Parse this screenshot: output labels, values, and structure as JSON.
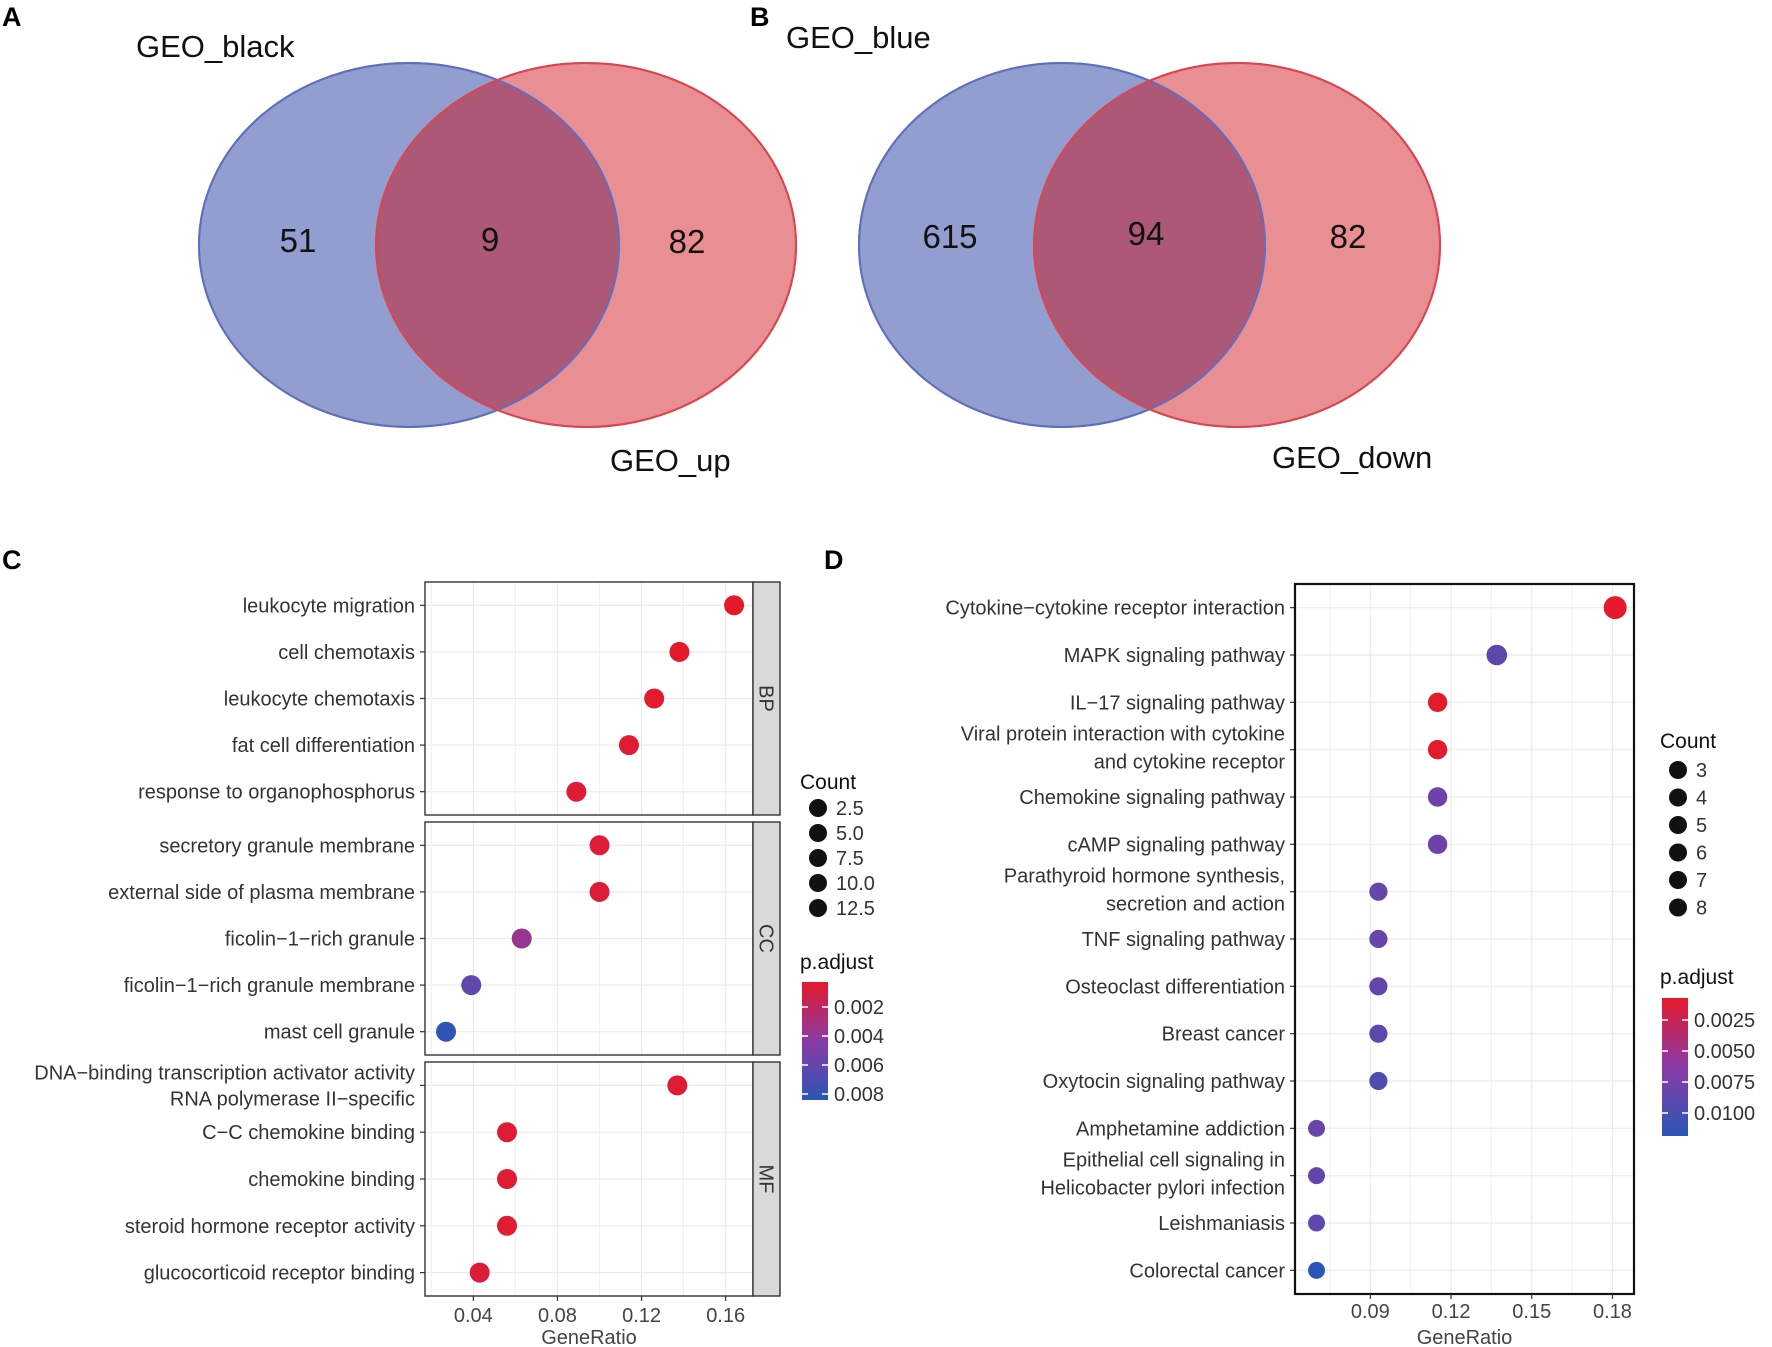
{
  "colors": {
    "venn_left": "#7f8cc8",
    "venn_left_stroke": "#5f6fbf",
    "venn_right": "#e36f74",
    "venn_right_stroke": "#d9464f",
    "venn_overlap": "#a95476",
    "p_low": "#e41a2c",
    "p_mid": "#8a3aa6",
    "p_high": "#2a57b5",
    "grid": "#ebebeb",
    "strip_fill": "#d9d9d9"
  },
  "chart_data": [
    {
      "panel": "A",
      "type": "venn",
      "sets": [
        {
          "name": "GEO_black",
          "only": 51
        },
        {
          "name": "GEO_up",
          "only": 82
        }
      ],
      "overlap": 9
    },
    {
      "panel": "B",
      "type": "venn",
      "sets": [
        {
          "name": "GEO_blue",
          "only": 615
        },
        {
          "name": "GEO_down",
          "only": 82
        }
      ],
      "overlap": 94
    },
    {
      "panel": "C",
      "type": "scatter",
      "title": "",
      "xlabel": "GeneRatio",
      "xlim": [
        0.017,
        0.173
      ],
      "xticks": [
        "0.04",
        "0.08",
        "0.12",
        "0.16"
      ],
      "facets": [
        {
          "name": "BP",
          "terms": [
            {
              "term": "leukocyte migration",
              "generatio": 0.164,
              "p_adjust": 0.0006,
              "count": 12.5
            },
            {
              "term": "cell chemotaxis",
              "generatio": 0.138,
              "p_adjust": 0.0006,
              "count": 11
            },
            {
              "term": "leukocyte chemotaxis",
              "generatio": 0.126,
              "p_adjust": 0.0007,
              "count": 10
            },
            {
              "term": "fat cell differentiation",
              "generatio": 0.114,
              "p_adjust": 0.0008,
              "count": 9
            },
            {
              "term": "response to organophosphorus",
              "generatio": 0.089,
              "p_adjust": 0.0009,
              "count": 7
            }
          ]
        },
        {
          "name": "CC",
          "terms": [
            {
              "term": "secretory granule membrane",
              "generatio": 0.1,
              "p_adjust": 0.001,
              "count": 8
            },
            {
              "term": "external side of plasma membrane",
              "generatio": 0.1,
              "p_adjust": 0.001,
              "count": 8
            },
            {
              "term": "ficolin−1−rich granule",
              "generatio": 0.063,
              "p_adjust": 0.004,
              "count": 5
            },
            {
              "term": "ficolin−1−rich granule membrane",
              "generatio": 0.039,
              "p_adjust": 0.0065,
              "count": 3
            },
            {
              "term": "mast cell granule",
              "generatio": 0.027,
              "p_adjust": 0.0085,
              "count": 2.5
            }
          ]
        },
        {
          "name": "MF",
          "terms": [
            {
              "term": "DNA−binding transcription activator activity, RNA polymerase II−specific",
              "label_lines": [
                "DNA−binding transcription activator activity",
                "RNA polymerase II−specific"
              ],
              "generatio": 0.137,
              "p_adjust": 0.0008,
              "count": 11
            },
            {
              "term": "C−C chemokine binding",
              "generatio": 0.056,
              "p_adjust": 0.0008,
              "count": 4.5
            },
            {
              "term": "chemokine binding",
              "generatio": 0.056,
              "p_adjust": 0.0008,
              "count": 4.5
            },
            {
              "term": "steroid hormone receptor activity",
              "generatio": 0.056,
              "p_adjust": 0.0008,
              "count": 4.5
            },
            {
              "term": "glucocorticoid receptor binding",
              "generatio": 0.043,
              "p_adjust": 0.001,
              "count": 3.5
            }
          ]
        }
      ],
      "legend": {
        "count_title": "Count",
        "count_values": [
          "2.5",
          "5.0",
          "7.5",
          "10.0",
          "12.5"
        ],
        "color_title": "p.adjust",
        "color_values": [
          "0.002",
          "0.004",
          "0.006",
          "0.008"
        ],
        "color_range": [
          0.0006,
          0.0088
        ]
      }
    },
    {
      "panel": "D",
      "type": "scatter",
      "title": "",
      "xlabel": "GeneRatio",
      "xlim": [
        0.062,
        0.188
      ],
      "xticks": [
        "0.09",
        "0.12",
        "0.15",
        "0.18"
      ],
      "terms": [
        {
          "term": "Cytokine−cytokine receptor interaction",
          "generatio": 0.181,
          "p_adjust": 0.0003,
          "count": 8
        },
        {
          "term": "MAPK signaling pathway",
          "generatio": 0.137,
          "p_adjust": 0.0078,
          "count": 6
        },
        {
          "term": "IL−17 signaling pathway",
          "generatio": 0.115,
          "p_adjust": 0.0004,
          "count": 5
        },
        {
          "term": "Viral protein interaction with cytokine and cytokine receptor",
          "label_lines": [
            "Viral protein interaction with cytokine",
            "and cytokine receptor"
          ],
          "generatio": 0.115,
          "p_adjust": 0.0004,
          "count": 5
        },
        {
          "term": "Chemokine signaling pathway",
          "generatio": 0.115,
          "p_adjust": 0.0068,
          "count": 5
        },
        {
          "term": "cAMP signaling pathway",
          "generatio": 0.115,
          "p_adjust": 0.0068,
          "count": 5
        },
        {
          "term": "Parathyroid hormone synthesis, secretion and action",
          "label_lines": [
            "Parathyroid hormone synthesis,",
            "secretion and action"
          ],
          "generatio": 0.093,
          "p_adjust": 0.0072,
          "count": 4
        },
        {
          "term": "TNF signaling pathway",
          "generatio": 0.093,
          "p_adjust": 0.0072,
          "count": 4
        },
        {
          "term": "Osteoclast differentiation",
          "generatio": 0.093,
          "p_adjust": 0.0074,
          "count": 4
        },
        {
          "term": "Breast cancer",
          "generatio": 0.093,
          "p_adjust": 0.0078,
          "count": 4
        },
        {
          "term": "Oxytocin signaling pathway",
          "generatio": 0.093,
          "p_adjust": 0.0084,
          "count": 4
        },
        {
          "term": "Amphetamine addiction",
          "generatio": 0.07,
          "p_adjust": 0.0072,
          "count": 3
        },
        {
          "term": "Epithelial cell signaling in Helicobacter pylori infection",
          "label_lines": [
            "Epithelial cell signaling in",
            "Helicobacter pylori infection"
          ],
          "generatio": 0.07,
          "p_adjust": 0.0074,
          "count": 3
        },
        {
          "term": "Leishmaniasis",
          "generatio": 0.07,
          "p_adjust": 0.0076,
          "count": 3
        },
        {
          "term": "Colorectal cancer",
          "generatio": 0.07,
          "p_adjust": 0.0104,
          "count": 3
        }
      ],
      "legend": {
        "count_title": "Count",
        "count_values": [
          "3",
          "4",
          "5",
          "6",
          "7",
          "8"
        ],
        "color_title": "p.adjust",
        "color_values": [
          "0.0025",
          "0.0050",
          "0.0075",
          "0.0100"
        ],
        "color_range": [
          0.0003,
          0.0104
        ]
      }
    }
  ]
}
